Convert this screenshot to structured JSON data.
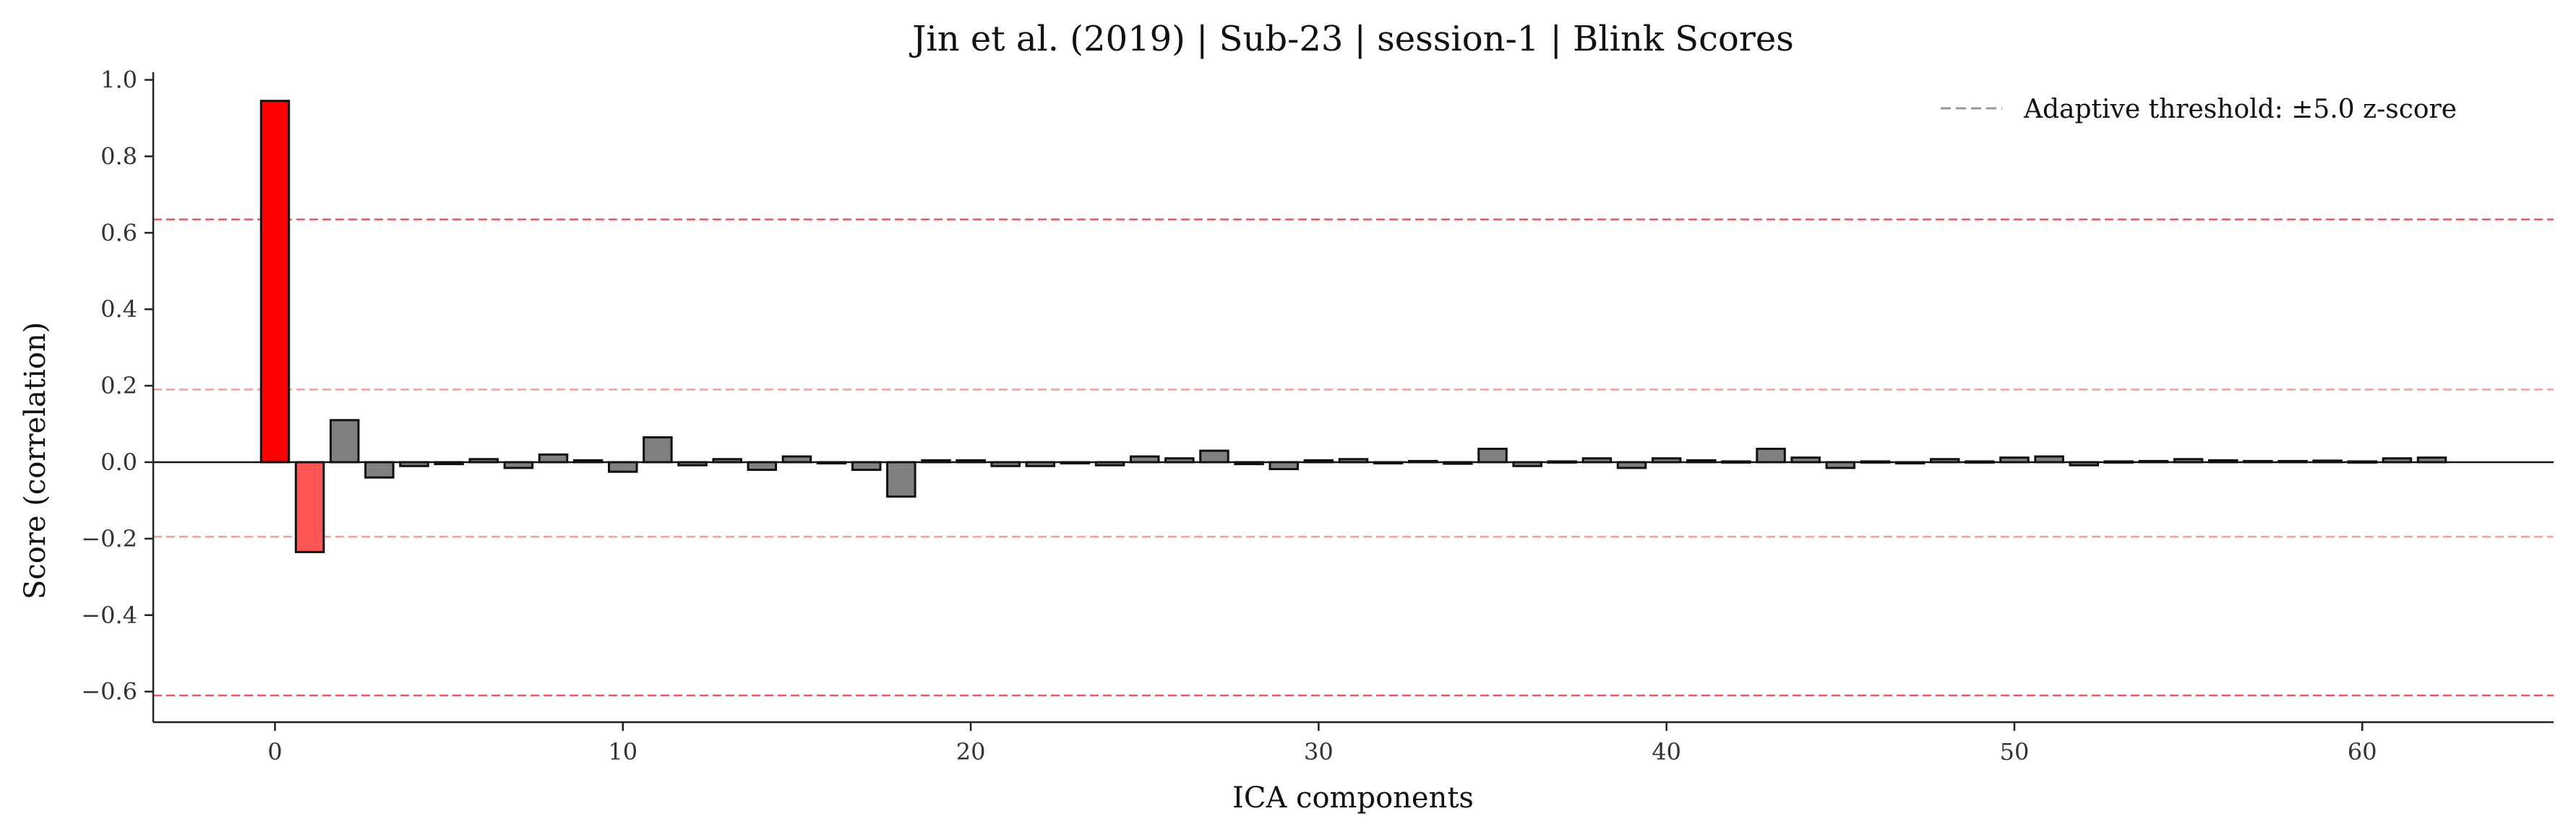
{
  "chart_data": {
    "type": "bar",
    "title": "Jin et al. (2019) | Sub-23 | session-1 | Blink Scores",
    "xlabel": "ICA components",
    "ylabel": "Score (correlation)",
    "xlim": [
      -3.5,
      65.5
    ],
    "ylim": [
      -0.68,
      1.02
    ],
    "xticks": [
      0,
      10,
      20,
      30,
      40,
      50,
      60
    ],
    "yticks": [
      -0.6,
      -0.4,
      -0.2,
      0.0,
      0.2,
      0.4,
      0.6,
      0.8,
      1.0
    ],
    "ytick_labels": [
      "−0.6",
      "−0.4",
      "−0.2",
      "0.0",
      "0.2",
      "0.4",
      "0.6",
      "0.8",
      "1.0"
    ],
    "x": [
      0,
      1,
      2,
      3,
      4,
      5,
      6,
      7,
      8,
      9,
      10,
      11,
      12,
      13,
      14,
      15,
      16,
      17,
      18,
      19,
      20,
      21,
      22,
      23,
      24,
      25,
      26,
      27,
      28,
      29,
      30,
      31,
      32,
      33,
      34,
      35,
      36,
      37,
      38,
      39,
      40,
      41,
      42,
      43,
      44,
      45,
      46,
      47,
      48,
      49,
      50,
      51,
      52,
      53,
      54,
      55,
      56,
      57,
      58,
      59,
      60,
      61,
      62
    ],
    "values": [
      0.945,
      -0.235,
      0.11,
      -0.04,
      -0.01,
      -0.005,
      0.008,
      -0.015,
      0.02,
      0.005,
      -0.025,
      0.065,
      -0.008,
      0.008,
      -0.02,
      0.015,
      -0.003,
      -0.02,
      -0.09,
      0.005,
      0.005,
      -0.01,
      -0.01,
      -0.003,
      -0.008,
      0.015,
      0.01,
      0.03,
      -0.005,
      -0.018,
      0.005,
      0.008,
      -0.003,
      0.003,
      -0.004,
      0.035,
      -0.01,
      0.002,
      0.01,
      -0.015,
      0.01,
      0.005,
      0.002,
      0.035,
      0.012,
      -0.015,
      0.002,
      -0.003,
      0.008,
      0.002,
      0.012,
      0.015,
      -0.008,
      0.002,
      0.003,
      0.008,
      0.005,
      0.003,
      0.003,
      0.004,
      0.002,
      0.01,
      0.012
    ],
    "flagged": {
      "0": "#ff0000",
      "1": "#ff5555"
    },
    "bar_color": "#808080",
    "threshold_lines": [
      {
        "value": 0.635,
        "color": "#e55a5a"
      },
      {
        "value": -0.61,
        "color": "#e55a5a"
      },
      {
        "value": 0.19,
        "color": "#f0a0a0"
      },
      {
        "value": -0.195,
        "color": "#f0a0a0"
      }
    ],
    "legend": {
      "label": "Adaptive threshold: ±5.0 z-score",
      "placement": "top-right",
      "line_color": "#999999"
    },
    "grid": false
  }
}
